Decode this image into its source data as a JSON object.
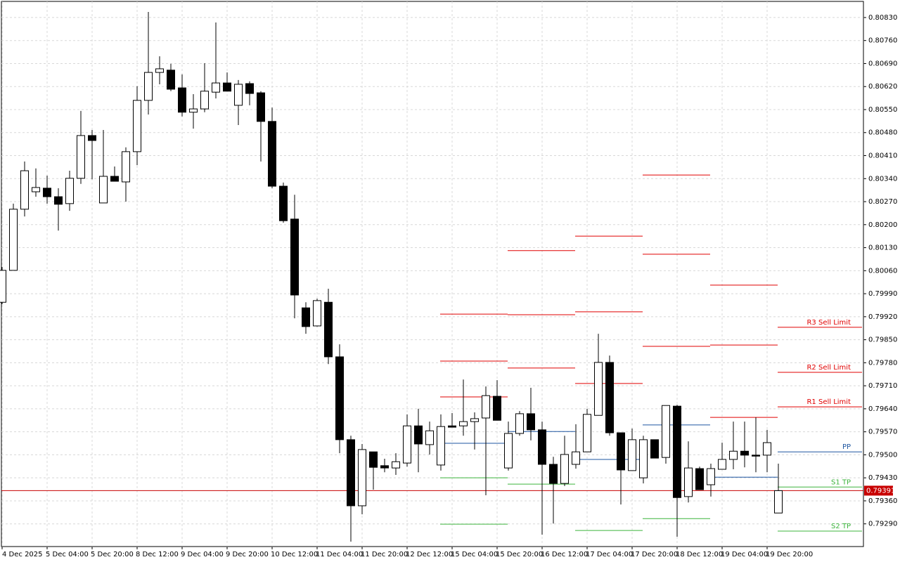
{
  "chart_data": {
    "type": "candlestick",
    "categories": [
      "4 Dec 2025",
      null,
      null,
      null,
      "5 Dec 04:00",
      null,
      null,
      null,
      "5 Dec 20:00",
      null,
      null,
      null,
      "8 Dec 12:00",
      null,
      null,
      null,
      "9 Dec 04:00",
      null,
      null,
      null,
      "9 Dec 20:00",
      null,
      null,
      null,
      "10 Dec 12:00",
      null,
      null,
      null,
      "11 Dec 04:00",
      null,
      null,
      null,
      "11 Dec 20:00",
      null,
      null,
      null,
      "12 Dec 12:00",
      null,
      null,
      null,
      "15 Dec 04:00",
      null,
      null,
      null,
      "15 Dec 20:00",
      null,
      null,
      null,
      "16 Dec 12:00",
      null,
      null,
      null,
      "17 Dec 04:00",
      null,
      null,
      null,
      "17 Dec 20:00",
      null,
      null,
      null,
      "18 Dec 12:00",
      null,
      null,
      null,
      "19 Dec 04:00",
      null,
      null,
      null,
      "19 Dec 20:00",
      null
    ],
    "open": [
      0.79964,
      0.80061,
      0.80247,
      0.803,
      0.80311,
      0.80285,
      0.80264,
      0.80341,
      0.80471,
      0.80266,
      0.80347,
      0.8033,
      0.80422,
      0.80578,
      0.80663,
      0.8067,
      0.80616,
      0.80542,
      0.80552,
      0.80603,
      0.80631,
      0.80563,
      0.80629,
      0.80601,
      0.80514,
      0.80317,
      0.80217,
      0.79947,
      0.79892,
      0.79964,
      0.79798,
      0.79546,
      0.79345,
      0.79509,
      0.79467,
      0.7946,
      0.79475,
      0.79588,
      0.79531,
      0.79469,
      0.79588,
      0.79588,
      0.79601,
      0.79612,
      0.79678,
      0.7946,
      0.79565,
      0.79625,
      0.79576,
      0.79471,
      0.79413,
      0.79471,
      0.79509,
      0.7962,
      0.79781,
      0.79567,
      0.79452,
      0.7943,
      0.79546,
      0.79492,
      0.79648,
      0.79373,
      0.79458,
      0.79409,
      0.79456,
      0.79486,
      0.79511,
      0.79499,
      0.79499,
      0.79323
    ],
    "high": [
      0.80071,
      0.80264,
      0.80392,
      0.80371,
      0.80349,
      0.80311,
      0.80364,
      0.80546,
      0.80488,
      0.80488,
      0.80377,
      0.80435,
      0.80621,
      0.80847,
      0.80712,
      0.80689,
      0.80657,
      0.80597,
      0.80691,
      0.80815,
      0.80663,
      0.8064,
      0.80636,
      0.80606,
      0.80556,
      0.80328,
      0.80291,
      0.79964,
      0.79975,
      0.80005,
      0.79836,
      0.79558,
      0.79533,
      0.79509,
      0.79488,
      0.79505,
      0.79623,
      0.7964,
      0.79601,
      0.79623,
      0.79627,
      0.79729,
      0.79629,
      0.79708,
      0.79727,
      0.79601,
      0.79633,
      0.79704,
      0.79601,
      0.79494,
      0.79558,
      0.79593,
      0.7964,
      0.79868,
      0.79802,
      0.79567,
      0.7958,
      0.79558,
      0.79546,
      0.7965,
      0.79652,
      0.79541,
      0.79464,
      0.79473,
      0.79537,
      0.79601,
      0.79601,
      0.79614,
      0.79576,
      0.79473
    ],
    "low": [
      0.79958,
      0.80061,
      0.80225,
      0.80285,
      0.80264,
      0.80182,
      0.80242,
      0.80324,
      0.80338,
      0.80266,
      0.80332,
      0.8027,
      0.80381,
      0.80535,
      0.80627,
      0.80606,
      0.80529,
      0.80492,
      0.80542,
      0.80584,
      0.80606,
      0.80503,
      0.80563,
      0.80392,
      0.80311,
      0.80206,
      0.79915,
      0.79868,
      0.7989,
      0.79776,
      0.79505,
      0.79236,
      0.79319,
      0.79394,
      0.79447,
      0.79439,
      0.79464,
      0.79447,
      0.79501,
      0.79452,
      0.79584,
      0.79558,
      0.79516,
      0.79377,
      0.79605,
      0.79452,
      0.79558,
      0.79544,
      0.79257,
      0.79291,
      0.79405,
      0.79458,
      0.79509,
      0.7962,
      0.79558,
      0.79349,
      0.79452,
      0.79413,
      0.7949,
      0.79473,
      0.79251,
      0.79355,
      0.79394,
      0.79373,
      0.79456,
      0.79456,
      0.79462,
      0.79447,
      0.79447,
      0.79323
    ],
    "close": [
      0.80061,
      0.80247,
      0.80364,
      0.80313,
      0.80285,
      0.80262,
      0.80341,
      0.80471,
      0.80456,
      0.80347,
      0.80332,
      0.80422,
      0.80578,
      0.80663,
      0.80674,
      0.80612,
      0.80542,
      0.80552,
      0.80606,
      0.80631,
      0.80606,
      0.80627,
      0.80599,
      0.80514,
      0.80317,
      0.80212,
      0.79986,
      0.7989,
      0.79969,
      0.79798,
      0.79546,
      0.79345,
      0.79516,
      0.79462,
      0.7946,
      0.79479,
      0.79588,
      0.79533,
      0.79573,
      0.79586,
      0.79584,
      0.79601,
      0.7961,
      0.7968,
      0.79605,
      0.79565,
      0.79625,
      0.79576,
      0.79471,
      0.79413,
      0.79501,
      0.79509,
      0.79623,
      0.79781,
      0.79567,
      0.79454,
      0.79546,
      0.79546,
      0.7949,
      0.7965,
      0.7937,
      0.7946,
      0.79394,
      0.79458,
      0.79486,
      0.79511,
      0.79499,
      0.79496,
      0.79537,
      0.79391
    ],
    "up_color": "#ffffff",
    "down_color": "#000000",
    "ylim": [
      0.79221,
      0.80879
    ],
    "yticks": [
      {
        "value": 0.8083,
        "label": "0.80830"
      },
      {
        "value": 0.8076,
        "label": "0.80760"
      },
      {
        "value": 0.8069,
        "label": "0.80690"
      },
      {
        "value": 0.8062,
        "label": "0.80620"
      },
      {
        "value": 0.8055,
        "label": "0.80550"
      },
      {
        "value": 0.8048,
        "label": "0.80480"
      },
      {
        "value": 0.8041,
        "label": "0.80410"
      },
      {
        "value": 0.8034,
        "label": "0.80340"
      },
      {
        "value": 0.8027,
        "label": "0.80270"
      },
      {
        "value": 0.802,
        "label": "0.80200"
      },
      {
        "value": 0.8013,
        "label": "0.80130"
      },
      {
        "value": 0.8006,
        "label": "0.80060"
      },
      {
        "value": 0.7999,
        "label": "0.79990"
      },
      {
        "value": 0.7992,
        "label": "0.79920"
      },
      {
        "value": 0.7985,
        "label": "0.79850"
      },
      {
        "value": 0.7978,
        "label": "0.79780"
      },
      {
        "value": 0.7971,
        "label": "0.79710"
      },
      {
        "value": 0.7964,
        "label": "0.79640"
      },
      {
        "value": 0.7957,
        "label": "0.79570"
      },
      {
        "value": 0.795,
        "label": "0.79500"
      },
      {
        "value": 0.7943,
        "label": "0.79430"
      },
      {
        "value": 0.7936,
        "label": "0.79360"
      },
      {
        "value": 0.7929,
        "label": "0.79290"
      }
    ],
    "grid": true,
    "current_price": 0.79391,
    "current_price_color": "#c80000",
    "resistance_color": "#e00000",
    "pp_color": "#1e56a0",
    "support_color": "#3cb43c",
    "pivots": [
      {
        "resistance": [
          0.79676,
          0.79785,
          0.79928
        ],
        "pp": 0.79535,
        "support": [
          0.7943,
          0.79289
        ]
      },
      {
        "resistance": [
          0.79764,
          0.79926,
          0.80121
        ],
        "pp": 0.79571,
        "support": [
          0.79411
        ]
      },
      {
        "resistance": [
          0.79717,
          0.79935,
          0.80165
        ],
        "pp": 0.79486,
        "support": [
          0.7927
        ]
      },
      {
        "resistance": [
          0.7983,
          0.8011,
          0.80351
        ],
        "pp": 0.79591,
        "support": [
          0.79306
        ]
      },
      {
        "resistance": [
          0.79614,
          0.79834,
          0.80016
        ],
        "pp": 0.79432,
        "support": []
      }
    ],
    "order_levels": [
      {
        "label": "R3 Sell Limit",
        "value": 0.79888,
        "kind": "resistance"
      },
      {
        "label": "R2 Sell Limit",
        "value": 0.79751,
        "kind": "resistance"
      },
      {
        "label": "R1 Sell Limit",
        "value": 0.79646,
        "kind": "resistance"
      },
      {
        "label": "PP",
        "value": 0.79509,
        "kind": "pp"
      },
      {
        "label": "S1 TP",
        "value": 0.79402,
        "kind": "support"
      },
      {
        "label": "S2 TP",
        "value": 0.79268,
        "kind": "support"
      }
    ]
  }
}
